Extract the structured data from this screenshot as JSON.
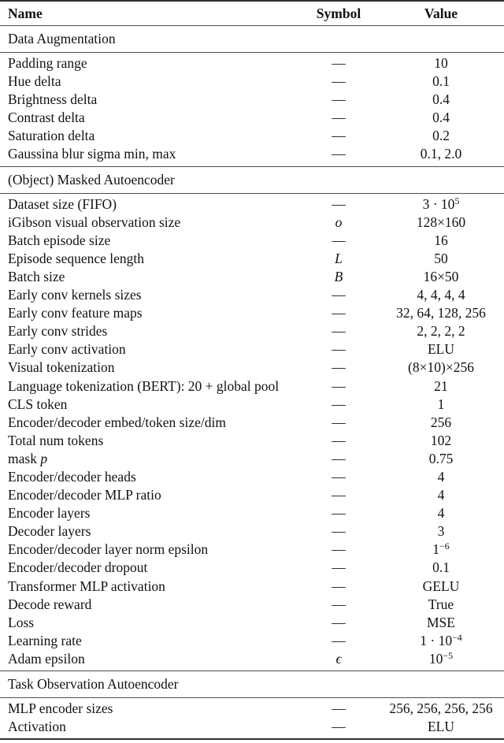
{
  "colors": {
    "background": "#ffffff",
    "text": "#121212",
    "rule_heavy": "#2e2e2e",
    "rule_light": "#4f4f4f"
  },
  "table": {
    "columns": [
      "Name",
      "Symbol",
      "Value"
    ],
    "sections": [
      {
        "title": "Data Augmentation",
        "rows": [
          {
            "name": "Padding range",
            "symbol": "—",
            "value": "10"
          },
          {
            "name": "Hue delta",
            "symbol": "—",
            "value": "0.1"
          },
          {
            "name": "Brightness delta",
            "symbol": "—",
            "value": "0.4"
          },
          {
            "name": "Contrast delta",
            "symbol": "—",
            "value": "0.4"
          },
          {
            "name": "Saturation delta",
            "symbol": "—",
            "value": "0.2"
          },
          {
            "name": "Gaussina blur sigma min, max",
            "symbol": "—",
            "value": "0.1, 2.0"
          }
        ]
      },
      {
        "title": "(Object) Masked Autoencoder",
        "rows": [
          {
            "name": "Dataset size (FIFO)",
            "symbol": "—",
            "value": "3 · 10^{5}"
          },
          {
            "name": "iGibson visual observation size",
            "symbol": "$o$",
            "value": "128×160"
          },
          {
            "name": "Batch episode size",
            "symbol": "—",
            "value": "16"
          },
          {
            "name": "Episode sequence length",
            "symbol": "$L$",
            "value": "50"
          },
          {
            "name": "Batch size",
            "symbol": "$B$",
            "value": "16×50"
          },
          {
            "name": "Early conv kernels sizes",
            "symbol": "—",
            "value": "4, 4, 4, 4"
          },
          {
            "name": "Early conv feature maps",
            "symbol": "—",
            "value": "32, 64, 128, 256"
          },
          {
            "name": "Early conv strides",
            "symbol": "—",
            "value": "2, 2, 2, 2"
          },
          {
            "name": "Early conv activation",
            "symbol": "—",
            "value": "ELU"
          },
          {
            "name": "Visual tokenization",
            "symbol": "—",
            "value": "(8×10)×256"
          },
          {
            "name": "Language tokenization (BERT): 20 + global pool",
            "symbol": "—",
            "value": "21"
          },
          {
            "name": "CLS token",
            "symbol": "—",
            "value": "1"
          },
          {
            "name": "Encoder/decoder embed/token size/dim",
            "symbol": "—",
            "value": "256"
          },
          {
            "name": "Total num tokens",
            "symbol": "—",
            "value": "102"
          },
          {
            "name": "mask $p$",
            "symbol": "—",
            "value": "0.75"
          },
          {
            "name": "Encoder/decoder heads",
            "symbol": "—",
            "value": "4"
          },
          {
            "name": "Encoder/decoder MLP ratio",
            "symbol": "—",
            "value": "4"
          },
          {
            "name": "Encoder layers",
            "symbol": "—",
            "value": "4"
          },
          {
            "name": "Decoder layers",
            "symbol": "—",
            "value": "3"
          },
          {
            "name": "Encoder/decoder layer norm epsilon",
            "symbol": "—",
            "value": "1^{−6}"
          },
          {
            "name": "Encoder/decoder dropout",
            "symbol": "—",
            "value": "0.1"
          },
          {
            "name": "Transformer MLP activation",
            "symbol": "—",
            "value": "GELU"
          },
          {
            "name": "Decode reward",
            "symbol": "—",
            "value": "True"
          },
          {
            "name": "Loss",
            "symbol": "—",
            "value": "MSE"
          },
          {
            "name": "Learning rate",
            "symbol": "—",
            "value": "1 · 10^{−4}"
          },
          {
            "name": "Adam epsilon",
            "symbol": "$ϵ$",
            "value": "10^{−5}"
          }
        ]
      },
      {
        "title": "Task Observation Autoencoder",
        "rows": [
          {
            "name": "MLP encoder sizes",
            "symbol": "—",
            "value": "256, 256, 256, 256"
          },
          {
            "name": "Activation",
            "symbol": "—",
            "value": "ELU"
          }
        ]
      }
    ]
  }
}
